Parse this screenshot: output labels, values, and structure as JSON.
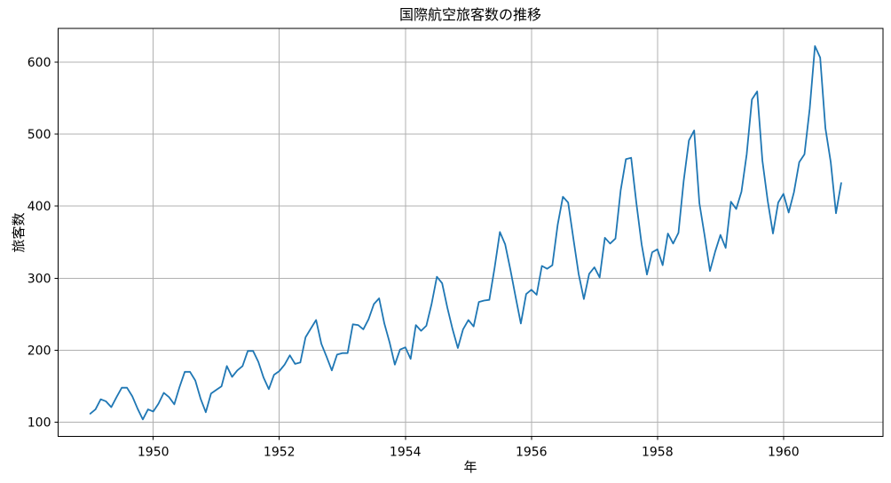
{
  "chart_data": {
    "type": "line",
    "title": "国際航空旅客数の推移",
    "xlabel": "年",
    "ylabel": "旅客数",
    "background": "#ffffff",
    "grid": true,
    "grid_color": "#b0b0b0",
    "axis_color": "#000000",
    "legend": null,
    "x_ticks": [
      1950,
      1952,
      1954,
      1956,
      1958,
      1960
    ],
    "y_ticks": [
      100,
      200,
      300,
      400,
      500,
      600
    ],
    "xlim": [
      1948.49,
      1961.58
    ],
    "ylim": [
      80.5,
      646.5
    ],
    "x_start_year": 1949,
    "points_per_year": 12,
    "x_range_description": "monthly values, January 1949 - December 1960",
    "series": [
      {
        "name": "旅客数",
        "color": "#1f77b4",
        "line_width": 1.8,
        "values": [
          112,
          118,
          132,
          129,
          121,
          135,
          148,
          148,
          136,
          119,
          104,
          118,
          115,
          126,
          141,
          135,
          125,
          149,
          170,
          170,
          158,
          133,
          114,
          140,
          145,
          150,
          178,
          163,
          172,
          178,
          199,
          199,
          184,
          162,
          146,
          166,
          171,
          180,
          193,
          181,
          183,
          218,
          230,
          242,
          209,
          191,
          172,
          194,
          196,
          196,
          236,
          235,
          229,
          243,
          264,
          272,
          237,
          211,
          180,
          201,
          204,
          188,
          235,
          227,
          234,
          264,
          302,
          293,
          259,
          229,
          203,
          229,
          242,
          233,
          267,
          269,
          270,
          315,
          364,
          347,
          312,
          274,
          237,
          278,
          284,
          277,
          317,
          313,
          318,
          374,
          413,
          405,
          355,
          306,
          271,
          306,
          315,
          301,
          356,
          348,
          355,
          422,
          465,
          467,
          404,
          347,
          305,
          336,
          340,
          318,
          362,
          348,
          363,
          435,
          491,
          505,
          404,
          359,
          310,
          337,
          360,
          342,
          406,
          396,
          420,
          472,
          548,
          559,
          463,
          407,
          362,
          405,
          417,
          391,
          419,
          461,
          472,
          535,
          622,
          606,
          508,
          461,
          390,
          432
        ]
      }
    ]
  }
}
